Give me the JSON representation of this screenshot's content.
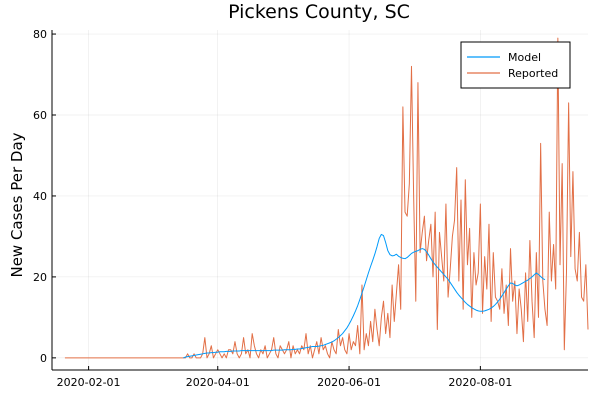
{
  "chart_data": {
    "type": "line",
    "title": "Pickens County, SC",
    "xlabel": "",
    "ylabel": "New Cases Per Day",
    "x_start": "2020-01-21",
    "xlim": [
      "2020-01-15",
      "2020-09-20"
    ],
    "ylim": [
      -3,
      81
    ],
    "x_ticks": [
      "2020-02-01",
      "2020-04-01",
      "2020-06-01",
      "2020-08-01"
    ],
    "y_ticks": [
      0,
      20,
      40,
      60,
      80
    ],
    "grid": true,
    "legend_position": "top-right",
    "series": [
      {
        "name": "Model",
        "color": "#009AFA",
        "start": "2020-03-16",
        "values": [
          0,
          0.2,
          0.3,
          0.4,
          0.5,
          0.6,
          0.7,
          0.8,
          0.9,
          1,
          1.1,
          1.2,
          1.2,
          1.3,
          1.3,
          1.4,
          1.4,
          1.5,
          1.5,
          1.5,
          1.6,
          1.6,
          1.6,
          1.7,
          1.7,
          1.7,
          1.7,
          1.8,
          1.8,
          1.8,
          1.8,
          1.8,
          1.8,
          1.8,
          1.8,
          1.8,
          1.8,
          1.8,
          1.8,
          1.8,
          1.8,
          1.8,
          1.9,
          1.9,
          1.9,
          1.9,
          1.9,
          2,
          2,
          2,
          2,
          2.1,
          2.1,
          2.2,
          2.2,
          2.3,
          2.4,
          2.5,
          2.6,
          2.7,
          2.8,
          2.8,
          2.8,
          2.9,
          3,
          3.1,
          3.3,
          3.5,
          3.7,
          3.9,
          4.2,
          4.6,
          5,
          5.5,
          6,
          6.7,
          7.4,
          8.3,
          9.3,
          10.4,
          11.6,
          12.9,
          14.4,
          16,
          17.6,
          19.3,
          21,
          22.6,
          24.1,
          25.7,
          27.5,
          29.5,
          30.5,
          30.2,
          28.5,
          26.5,
          25.5,
          25.2,
          25.3,
          25.6,
          25.1,
          24.8,
          24.6,
          24.5,
          24.8,
          25.3,
          25.8,
          26.1,
          26.3,
          26.5,
          26.8,
          27,
          26.8,
          26.2,
          25.4,
          24.5,
          23.7,
          23,
          22.4,
          21.8,
          21.2,
          20.6,
          20,
          19.4,
          18.6,
          17.8,
          17,
          16.2,
          15.5,
          14.9,
          14.3,
          13.7,
          13.2,
          12.8,
          12.4,
          12.1,
          11.8,
          11.6,
          11.5,
          11.5,
          11.6,
          11.8,
          12,
          12.3,
          12.7,
          13.2,
          13.8,
          14.5,
          15.3,
          16.1,
          17,
          17.8,
          18.5,
          18.4,
          18,
          17.8,
          18,
          18.3,
          18.6,
          18.9,
          19.2,
          19.6,
          20,
          20.5,
          21,
          20.6,
          20.1,
          19.6,
          19.3
        ]
      },
      {
        "name": "Reported",
        "color": "#E26F46",
        "values": [
          0,
          0,
          0,
          0,
          0,
          0,
          0,
          0,
          0,
          0,
          0,
          0,
          0,
          0,
          0,
          0,
          0,
          0,
          0,
          0,
          0,
          0,
          0,
          0,
          0,
          0,
          0,
          0,
          0,
          0,
          0,
          0,
          0,
          0,
          0,
          0,
          0,
          0,
          0,
          0,
          0,
          0,
          0,
          0,
          0,
          0,
          0,
          0,
          0,
          0,
          0,
          0,
          0,
          0,
          0,
          0,
          0,
          1,
          0,
          0,
          1,
          0,
          0,
          0,
          1,
          5,
          0,
          1,
          3,
          0,
          1,
          2,
          1,
          0,
          1,
          0,
          2,
          2,
          1,
          4,
          1,
          0,
          1,
          5,
          1,
          2,
          0,
          6,
          3,
          1,
          0,
          2,
          1,
          3,
          0,
          1,
          2,
          5,
          1,
          0,
          3,
          2,
          1,
          2,
          4,
          0,
          3,
          1,
          2,
          1,
          3,
          2,
          6,
          1,
          3,
          0,
          2,
          4,
          1,
          5,
          2,
          3,
          1,
          0,
          4,
          2,
          1,
          7,
          3,
          5,
          2,
          1,
          6,
          2,
          4,
          3,
          8,
          1,
          18,
          2,
          6,
          3,
          9,
          4,
          12,
          7,
          3,
          10,
          14,
          6,
          11,
          5,
          18,
          9,
          16,
          23,
          12,
          62,
          36,
          35,
          43,
          72,
          40,
          14,
          68,
          26,
          31,
          35,
          24,
          29,
          33,
          20,
          36,
          7,
          31,
          25,
          19,
          38,
          15,
          22,
          30,
          34,
          47,
          19,
          39,
          12,
          44,
          23,
          32,
          10,
          26,
          18,
          21,
          38,
          11,
          25,
          17,
          33,
          9,
          26,
          15,
          14,
          12,
          22,
          11,
          18,
          8,
          27,
          14,
          19,
          6,
          17,
          12,
          4,
          21,
          9,
          29,
          14,
          5,
          26,
          10,
          53,
          19,
          12,
          8,
          36,
          19,
          28,
          17,
          79,
          23,
          48,
          2,
          21,
          63,
          25,
          46,
          22,
          19,
          31,
          15,
          14,
          23,
          7
        ]
      }
    ]
  }
}
